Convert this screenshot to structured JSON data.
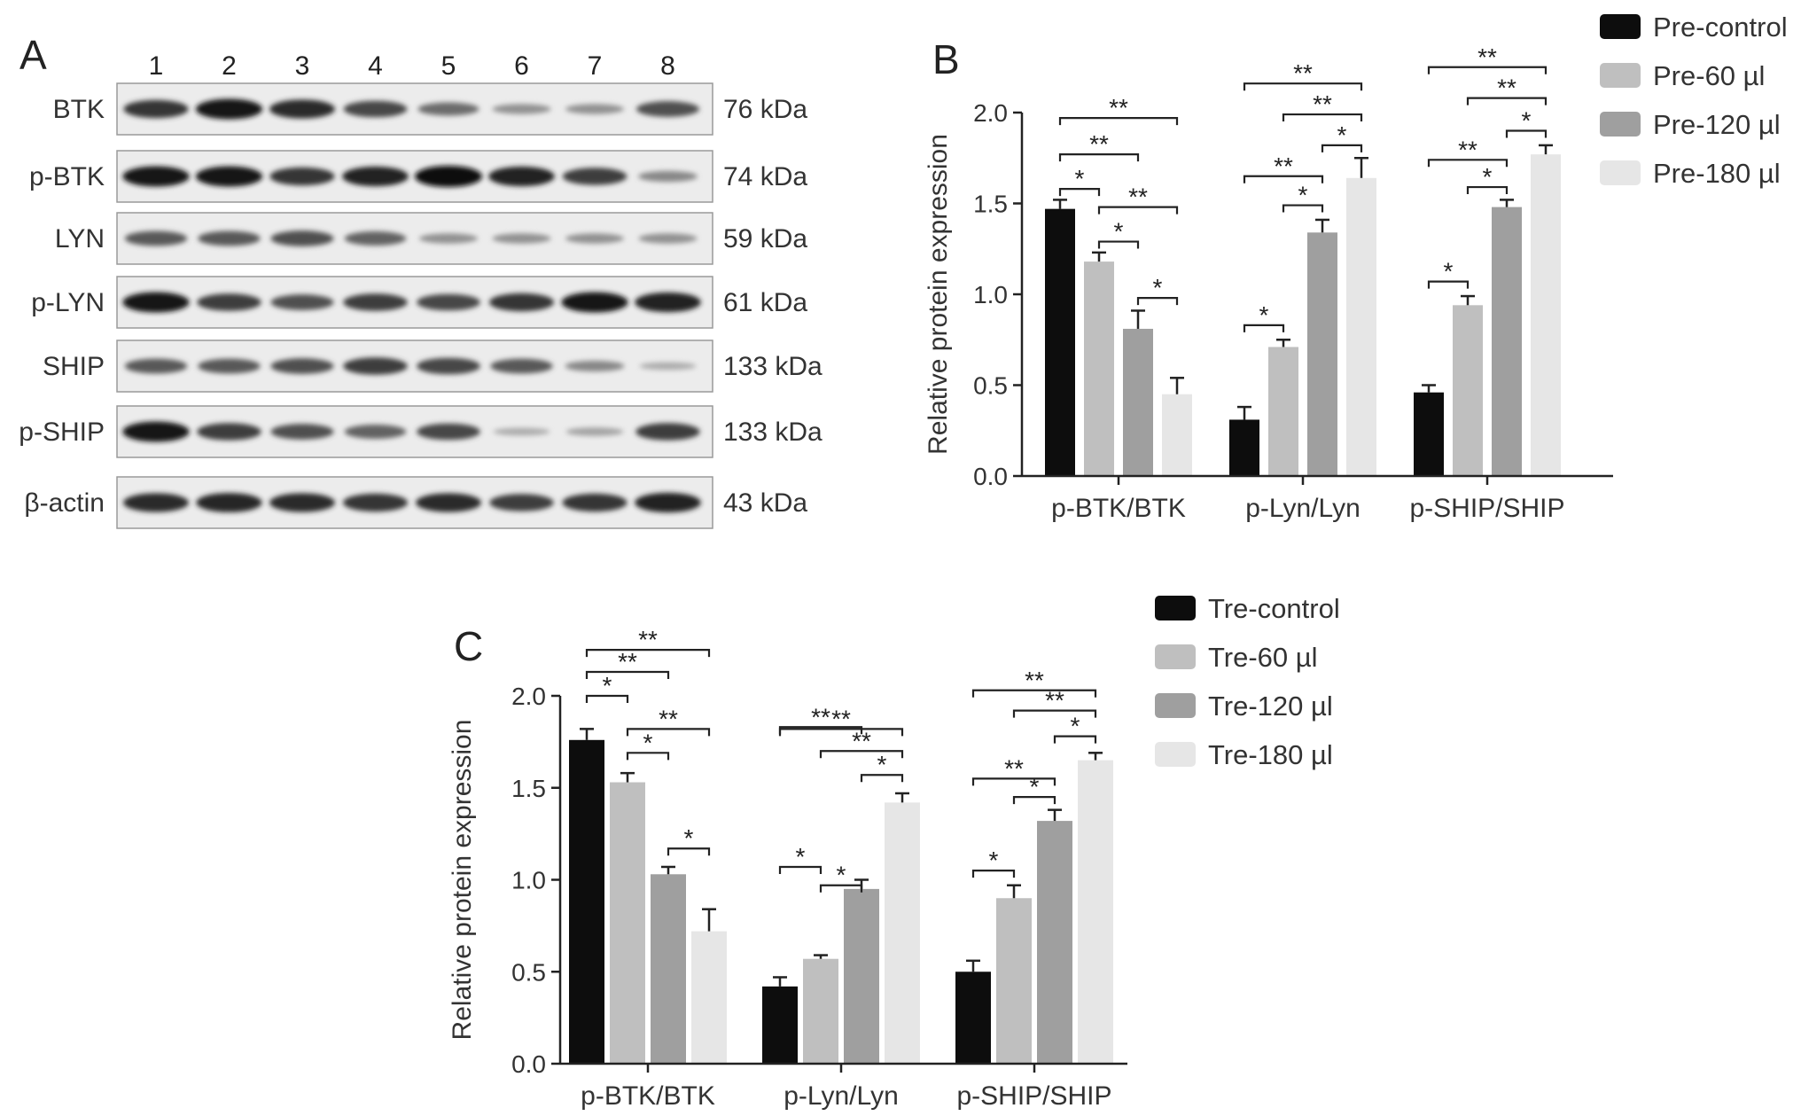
{
  "panel_a": {
    "label": "A",
    "lanes": [
      "1",
      "2",
      "3",
      "4",
      "5",
      "6",
      "7",
      "8"
    ],
    "blots": [
      {
        "name": "BTK",
        "size": "76 kDa",
        "intensity": [
          0.8,
          0.95,
          0.85,
          0.7,
          0.5,
          0.3,
          0.3,
          0.65
        ]
      },
      {
        "name": "p-BTK",
        "size": "74 kDa",
        "intensity": [
          0.95,
          0.95,
          0.8,
          0.9,
          1.0,
          0.9,
          0.75,
          0.35
        ]
      },
      {
        "name": "LYN",
        "size": "59 kDa",
        "intensity": [
          0.6,
          0.6,
          0.65,
          0.55,
          0.3,
          0.3,
          0.3,
          0.3
        ]
      },
      {
        "name": "p-LYN",
        "size": "61 kDa",
        "intensity": [
          0.95,
          0.75,
          0.65,
          0.75,
          0.7,
          0.8,
          0.95,
          0.9
        ]
      },
      {
        "name": "SHIP",
        "size": "133 kDa",
        "intensity": [
          0.6,
          0.6,
          0.65,
          0.75,
          0.7,
          0.6,
          0.35,
          0.15
        ]
      },
      {
        "name": "p-SHIP",
        "size": "133 kDa",
        "intensity": [
          0.95,
          0.75,
          0.65,
          0.55,
          0.7,
          0.15,
          0.2,
          0.75
        ]
      },
      {
        "name": "β-actin",
        "size": "43 kDa",
        "intensity": [
          0.85,
          0.88,
          0.85,
          0.8,
          0.85,
          0.75,
          0.8,
          0.9
        ]
      }
    ]
  },
  "chart_data": [
    {
      "panel": "B",
      "type": "bar",
      "categories": [
        "p-BTK/BTK",
        "p-Lyn/Lyn",
        "p-SHIP/SHIP"
      ],
      "ylabel": "Relative protein expression",
      "ylim": [
        0,
        2.0
      ],
      "yticks": [
        "0.0",
        "0.5",
        "1.0",
        "1.5",
        "2.0"
      ],
      "legend_position": "top-right",
      "series": [
        {
          "name": "Pre-control",
          "color": "#0d0d0d",
          "values": [
            1.47,
            0.31,
            0.46
          ],
          "errors": [
            0.05,
            0.07,
            0.04
          ]
        },
        {
          "name": "Pre-60 µl",
          "color": "#bfbfbf",
          "values": [
            1.18,
            0.71,
            0.94
          ],
          "errors": [
            0.05,
            0.04,
            0.05
          ]
        },
        {
          "name": "Pre-120 µl",
          "color": "#9f9f9f",
          "values": [
            0.81,
            1.34,
            1.48
          ],
          "errors": [
            0.1,
            0.07,
            0.04
          ]
        },
        {
          "name": "Pre-180 µl",
          "color": "#e6e6e6",
          "values": [
            0.45,
            1.64,
            1.77
          ],
          "errors": [
            0.09,
            0.11,
            0.05
          ]
        }
      ],
      "significance": [
        {
          "category": 0,
          "from": 0,
          "to": 1,
          "label": "*",
          "y": 1.58
        },
        {
          "category": 0,
          "from": 0,
          "to": 2,
          "label": "**",
          "y": 1.77
        },
        {
          "category": 0,
          "from": 0,
          "to": 3,
          "label": "**",
          "y": 1.97
        },
        {
          "category": 0,
          "from": 1,
          "to": 2,
          "label": "*",
          "y": 1.29
        },
        {
          "category": 0,
          "from": 1,
          "to": 3,
          "label": "**",
          "y": 1.48
        },
        {
          "category": 0,
          "from": 2,
          "to": 3,
          "label": "*",
          "y": 0.98
        },
        {
          "category": 1,
          "from": 0,
          "to": 1,
          "label": "*",
          "y": 0.83
        },
        {
          "category": 1,
          "from": 0,
          "to": 2,
          "label": "**",
          "y": 1.65
        },
        {
          "category": 1,
          "from": 0,
          "to": 3,
          "label": "**",
          "y": 2.16
        },
        {
          "category": 1,
          "from": 1,
          "to": 2,
          "label": "*",
          "y": 1.49
        },
        {
          "category": 1,
          "from": 1,
          "to": 3,
          "label": "**",
          "y": 1.99
        },
        {
          "category": 1,
          "from": 2,
          "to": 3,
          "label": "*",
          "y": 1.82
        },
        {
          "category": 2,
          "from": 0,
          "to": 1,
          "label": "*",
          "y": 1.07
        },
        {
          "category": 2,
          "from": 0,
          "to": 2,
          "label": "**",
          "y": 1.74
        },
        {
          "category": 2,
          "from": 0,
          "to": 3,
          "label": "**",
          "y": 2.25
        },
        {
          "category": 2,
          "from": 1,
          "to": 2,
          "label": "*",
          "y": 1.59
        },
        {
          "category": 2,
          "from": 1,
          "to": 3,
          "label": "**",
          "y": 2.08
        },
        {
          "category": 2,
          "from": 2,
          "to": 3,
          "label": "*",
          "y": 1.9
        }
      ]
    },
    {
      "panel": "C",
      "type": "bar",
      "categories": [
        "p-BTK/BTK",
        "p-Lyn/Lyn",
        "p-SHIP/SHIP"
      ],
      "ylabel": "Relative protein expression",
      "ylim": [
        0,
        2.0
      ],
      "yticks": [
        "0.0",
        "0.5",
        "1.0",
        "1.5",
        "2.0"
      ],
      "legend_position": "top-right",
      "series": [
        {
          "name": "Tre-control",
          "color": "#0d0d0d",
          "values": [
            1.76,
            0.42,
            0.5
          ],
          "errors": [
            0.06,
            0.05,
            0.06
          ]
        },
        {
          "name": "Tre-60 µl",
          "color": "#bfbfbf",
          "values": [
            1.53,
            0.57,
            0.9
          ],
          "errors": [
            0.05,
            0.02,
            0.07
          ]
        },
        {
          "name": "Tre-120 µl",
          "color": "#9f9f9f",
          "values": [
            1.03,
            0.95,
            1.32
          ],
          "errors": [
            0.04,
            0.05,
            0.06
          ]
        },
        {
          "name": "Tre-180 µl",
          "color": "#e6e6e6",
          "values": [
            0.72,
            1.42,
            1.65
          ],
          "errors": [
            0.12,
            0.05,
            0.04
          ]
        }
      ],
      "significance": [
        {
          "category": 0,
          "from": 0,
          "to": 1,
          "label": "*",
          "y": 2.0
        },
        {
          "category": 0,
          "from": 0,
          "to": 2,
          "label": "**",
          "y": 2.13
        },
        {
          "category": 0,
          "from": 0,
          "to": 3,
          "label": "**",
          "y": 2.25
        },
        {
          "category": 0,
          "from": 1,
          "to": 2,
          "label": "*",
          "y": 1.69
        },
        {
          "category": 0,
          "from": 1,
          "to": 3,
          "label": "**",
          "y": 1.82
        },
        {
          "category": 0,
          "from": 2,
          "to": 3,
          "label": "*",
          "y": 1.17
        },
        {
          "category": 1,
          "from": 0,
          "to": 1,
          "label": "*",
          "y": 1.07
        },
        {
          "category": 1,
          "from": 0,
          "to": 2,
          "label": "**",
          "y": 1.83
        },
        {
          "category": 1,
          "from": 0,
          "to": 3,
          "label": "**",
          "y": 1.82
        },
        {
          "category": 1,
          "from": 1,
          "to": 2,
          "label": "*",
          "y": 0.97
        },
        {
          "category": 1,
          "from": 1,
          "to": 3,
          "label": "**",
          "y": 1.7
        },
        {
          "category": 1,
          "from": 2,
          "to": 3,
          "label": "*",
          "y": 1.57
        },
        {
          "category": 2,
          "from": 0,
          "to": 1,
          "label": "*",
          "y": 1.05
        },
        {
          "category": 2,
          "from": 0,
          "to": 2,
          "label": "**",
          "y": 1.55
        },
        {
          "category": 2,
          "from": 0,
          "to": 3,
          "label": "**",
          "y": 2.03
        },
        {
          "category": 2,
          "from": 1,
          "to": 2,
          "label": "*",
          "y": 1.45
        },
        {
          "category": 2,
          "from": 1,
          "to": 3,
          "label": "**",
          "y": 1.92
        },
        {
          "category": 2,
          "from": 2,
          "to": 3,
          "label": "*",
          "y": 1.78
        }
      ]
    }
  ]
}
